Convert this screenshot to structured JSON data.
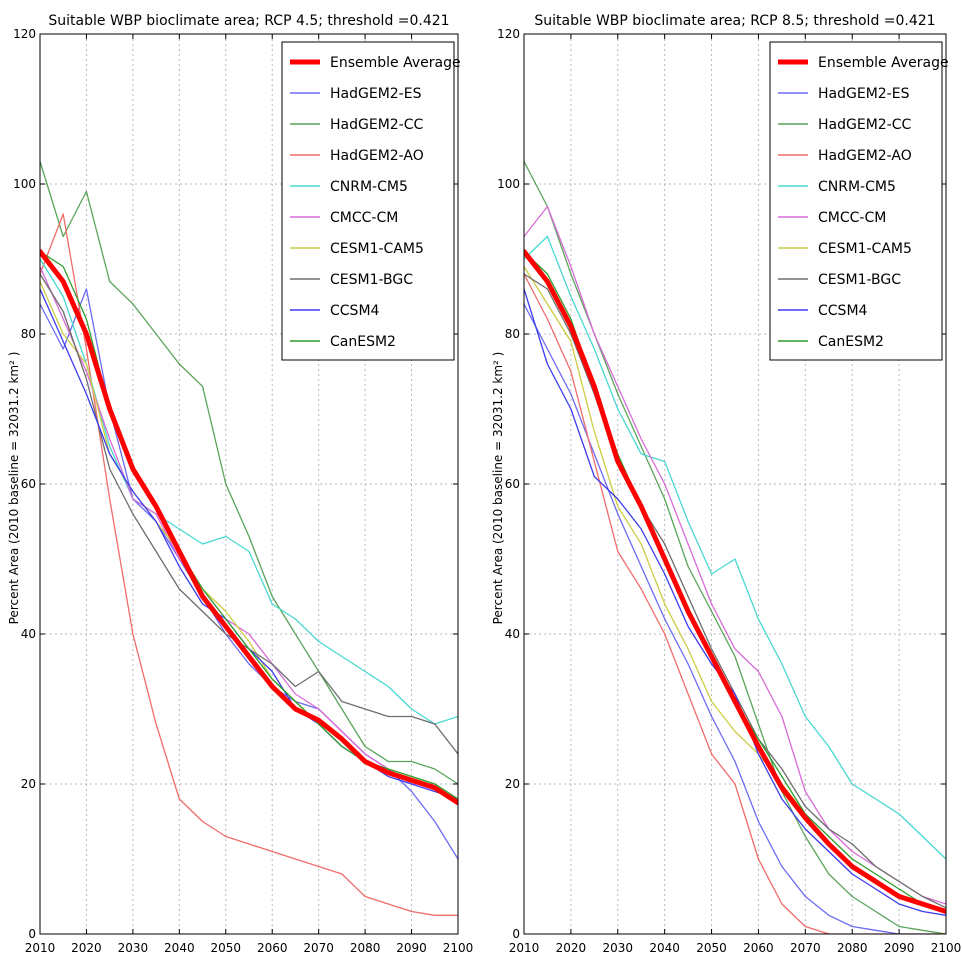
{
  "chart_data": [
    {
      "type": "line",
      "title": "Suitable WBP bioclimate area; RCP 4.5; threshold =0.421",
      "xlabel": "",
      "ylabel": "Percent Area (2010 baseline = 32031.2 km² )",
      "xlim": [
        2010,
        2100
      ],
      "ylim": [
        0,
        120
      ],
      "xticks": [
        2010,
        2020,
        2030,
        2040,
        2050,
        2060,
        2070,
        2080,
        2090,
        2100
      ],
      "yticks": [
        0,
        20,
        40,
        60,
        80,
        100,
        120
      ],
      "grid": true,
      "legend_position": "top-right",
      "x": [
        2010,
        2015,
        2020,
        2025,
        2030,
        2035,
        2040,
        2045,
        2050,
        2055,
        2060,
        2065,
        2070,
        2075,
        2080,
        2085,
        2090,
        2095,
        2100
      ],
      "series": [
        {
          "name": "Ensemble Average",
          "color": "#ff0000",
          "width": 5,
          "values": [
            91,
            87,
            80,
            70,
            62,
            57,
            51,
            45,
            41,
            37,
            33,
            30,
            28.5,
            26,
            23,
            21.5,
            20.5,
            19.5,
            17.5
          ]
        },
        {
          "name": "HadGEM2-ES",
          "color": "#6b6bf5",
          "width": 1.3,
          "values": [
            84,
            78,
            86,
            70,
            58,
            55,
            50,
            45,
            40,
            36,
            33,
            31,
            30,
            27,
            24,
            22,
            19,
            15,
            10
          ]
        },
        {
          "name": "HadGEM2-CC",
          "color": "#5aa45a",
          "width": 1.3,
          "values": [
            103,
            93,
            99,
            87,
            84,
            80,
            76,
            73,
            60,
            53,
            45,
            40,
            35,
            30,
            25,
            23,
            23,
            22,
            20
          ]
        },
        {
          "name": "HadGEM2-AO",
          "color": "#f26b6b",
          "width": 1.3,
          "values": [
            88,
            96,
            78,
            58,
            40,
            28,
            18,
            15,
            13,
            12,
            11,
            10,
            9,
            8,
            5,
            4,
            3,
            2.5,
            2.5
          ]
        },
        {
          "name": "CNRM-CM5",
          "color": "#48d8d0",
          "width": 1.3,
          "values": [
            90,
            85,
            76,
            65,
            58,
            56,
            54,
            52,
            53,
            51,
            44,
            42,
            39,
            37,
            35,
            33,
            30,
            28,
            29
          ]
        },
        {
          "name": "CMCC-CM",
          "color": "#d86bd8",
          "width": 1.3,
          "values": [
            89,
            82,
            75,
            66,
            58,
            56,
            50,
            46,
            42,
            40,
            36,
            32,
            30,
            27,
            24,
            22,
            20,
            20,
            18
          ]
        },
        {
          "name": "CESM1-CAM5",
          "color": "#cccc44",
          "width": 1.3,
          "values": [
            87,
            80,
            76,
            64,
            59,
            55,
            51,
            46,
            43,
            39,
            34,
            31,
            28,
            26,
            23,
            22,
            21,
            20,
            18
          ]
        },
        {
          "name": "CESM1-BGC",
          "color": "#6e6e6e",
          "width": 1.3,
          "values": [
            88,
            83,
            74,
            62,
            56,
            51,
            46,
            43,
            40,
            38,
            36,
            33,
            35,
            31,
            30,
            29,
            29,
            28,
            24
          ]
        },
        {
          "name": "CCSM4",
          "color": "#3c3cf0",
          "width": 1.3,
          "values": [
            86,
            79,
            72,
            64,
            59,
            55,
            49,
            44,
            42,
            38,
            35,
            30,
            28,
            25,
            23,
            21,
            20,
            19,
            18
          ]
        },
        {
          "name": "CanESM2",
          "color": "#2e9e2e",
          "width": 1.3,
          "values": [
            91,
            89,
            82,
            70,
            62,
            57,
            51,
            46,
            42,
            38,
            34,
            31,
            28,
            25,
            23,
            22,
            21,
            20,
            18
          ]
        }
      ]
    },
    {
      "type": "line",
      "title": "Suitable WBP bioclimate area; RCP 8.5; threshold =0.421",
      "xlabel": "",
      "ylabel": "Percent Area (2010 baseline = 32031.2 km² )",
      "xlim": [
        2010,
        2100
      ],
      "ylim": [
        0,
        120
      ],
      "xticks": [
        2010,
        2020,
        2030,
        2040,
        2050,
        2060,
        2070,
        2080,
        2090,
        2100
      ],
      "yticks": [
        0,
        20,
        40,
        60,
        80,
        100,
        120
      ],
      "grid": true,
      "legend_position": "top-right",
      "x": [
        2010,
        2015,
        2020,
        2025,
        2030,
        2035,
        2040,
        2045,
        2050,
        2055,
        2060,
        2065,
        2070,
        2075,
        2080,
        2085,
        2090,
        2095,
        2100
      ],
      "series": [
        {
          "name": "Ensemble Average",
          "color": "#ff0000",
          "width": 5,
          "values": [
            91,
            87,
            81,
            73,
            63,
            57,
            50,
            43,
            37,
            31,
            25,
            19.5,
            15.5,
            12,
            9,
            7,
            5,
            4,
            3
          ]
        },
        {
          "name": "HadGEM2-ES",
          "color": "#6b6bf5",
          "width": 1.3,
          "values": [
            84,
            78,
            72,
            64,
            56,
            49,
            42,
            36,
            29,
            23,
            15,
            9,
            5,
            2.5,
            1,
            0.5,
            0,
            0,
            0
          ]
        },
        {
          "name": "HadGEM2-CC",
          "color": "#5aa45a",
          "width": 1.3,
          "values": [
            103,
            97,
            88,
            80,
            72,
            65,
            58,
            49,
            43,
            37,
            28,
            19,
            13,
            8,
            5,
            3,
            1,
            0.5,
            0
          ]
        },
        {
          "name": "HadGEM2-AO",
          "color": "#f26b6b",
          "width": 1.3,
          "values": [
            88,
            82,
            75,
            63,
            51,
            46,
            40,
            32,
            24,
            20,
            10,
            4,
            1,
            0,
            0,
            0,
            0,
            0,
            0
          ]
        },
        {
          "name": "CNRM-CM5",
          "color": "#48d8d0",
          "width": 1.3,
          "values": [
            90,
            93,
            85,
            78,
            70,
            64,
            63,
            55,
            48,
            50,
            42,
            36,
            29,
            25,
            20,
            18,
            16,
            13,
            10
          ]
        },
        {
          "name": "CMCC-CM",
          "color": "#d86bd8",
          "width": 1.3,
          "values": [
            93,
            97,
            89,
            80,
            73,
            66,
            60,
            52,
            44,
            38,
            35,
            29,
            19,
            14,
            11,
            9,
            7,
            5,
            4
          ]
        },
        {
          "name": "CESM1-CAM5",
          "color": "#cccc44",
          "width": 1.3,
          "values": [
            89,
            84,
            79,
            67,
            57,
            52,
            44,
            38,
            31,
            27,
            24,
            20,
            16,
            12,
            9,
            7,
            5,
            4,
            3
          ]
        },
        {
          "name": "CESM1-BGC",
          "color": "#6e6e6e",
          "width": 1.3,
          "values": [
            88,
            86,
            80,
            72,
            63,
            57,
            52,
            45,
            38,
            32,
            26,
            22,
            17,
            14,
            12,
            9,
            7,
            5,
            3.5
          ]
        },
        {
          "name": "CCSM4",
          "color": "#3c3cf0",
          "width": 1.3,
          "values": [
            86,
            76,
            70,
            61,
            58,
            54,
            48,
            41,
            36,
            32,
            24,
            18,
            14,
            11,
            8,
            6,
            4,
            3,
            2.5
          ]
        },
        {
          "name": "CanESM2",
          "color": "#2e9e2e",
          "width": 1.3,
          "values": [
            91,
            88,
            82,
            73,
            64,
            57,
            50,
            43,
            37,
            31,
            26,
            21,
            16,
            13,
            10,
            8,
            6,
            4,
            3
          ]
        }
      ]
    }
  ]
}
